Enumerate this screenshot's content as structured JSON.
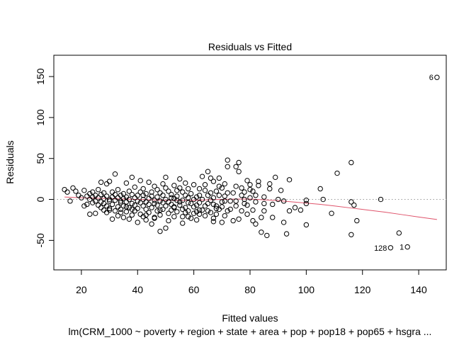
{
  "chart_data": {
    "type": "scatter",
    "title": "Residuals vs Fitted",
    "xlabel": "Fitted values",
    "ylabel": "Residuals",
    "subtitle": "lm(CRM_1000 ~ poverty + region + state + area + pop + pop18 + pop65 + hsgra ...",
    "xlim": [
      10.2,
      149.8
    ],
    "ylim": [
      -86,
      176
    ],
    "x_ticks": [
      20,
      40,
      60,
      80,
      100,
      120,
      140
    ],
    "y_ticks": [
      -50,
      0,
      50,
      100,
      150
    ],
    "grid": false,
    "legend": "none",
    "reference_line": {
      "y": 0,
      "style": "dotted",
      "color": "#999999"
    },
    "smoother": {
      "color": "#DF536B",
      "x": [
        14,
        20,
        25,
        30,
        35,
        40,
        45,
        50,
        55,
        60,
        65,
        70,
        75,
        80,
        85,
        90,
        95,
        100,
        105,
        110,
        116,
        122,
        128,
        134,
        140,
        146.5
      ],
      "y": [
        3,
        2,
        1.5,
        1,
        0.5,
        0,
        -0.5,
        -1,
        -1.2,
        -1,
        -0.5,
        0,
        0.5,
        0.5,
        -0.5,
        -1.5,
        -3,
        -4.5,
        -6,
        -8,
        -10.5,
        -13,
        -15.5,
        -18.5,
        -21.5,
        -24.5
      ]
    },
    "labeled_points": [
      {
        "label": "6",
        "x": 146.5,
        "y": 149
      },
      {
        "label": "128",
        "x": 130,
        "y": -59
      },
      {
        "label": "1",
        "x": 136,
        "y": -58
      }
    ],
    "points": [
      [
        146.5,
        149
      ],
      [
        130,
        -59
      ],
      [
        136,
        -58
      ],
      [
        133,
        -41
      ],
      [
        126.5,
        0
      ],
      [
        116,
        45
      ],
      [
        111,
        32
      ],
      [
        116,
        -43
      ],
      [
        118,
        -26
      ],
      [
        117,
        -7
      ],
      [
        116,
        -3
      ],
      [
        109,
        -17
      ],
      [
        106,
        0
      ],
      [
        105,
        13
      ],
      [
        100,
        -31
      ],
      [
        100,
        -5
      ],
      [
        100,
        -1
      ],
      [
        98,
        -13
      ],
      [
        96,
        -10
      ],
      [
        94,
        -14
      ],
      [
        94,
        24
      ],
      [
        93,
        -42
      ],
      [
        92,
        -28
      ],
      [
        92,
        -2
      ],
      [
        91,
        11
      ],
      [
        90,
        0
      ],
      [
        89,
        27
      ],
      [
        88,
        -6
      ],
      [
        88,
        -22
      ],
      [
        87,
        13
      ],
      [
        87,
        19
      ],
      [
        86,
        -44
      ],
      [
        85,
        -14
      ],
      [
        85,
        -5
      ],
      [
        85,
        3
      ],
      [
        84,
        -40
      ],
      [
        84,
        -22
      ],
      [
        83,
        17
      ],
      [
        83,
        22
      ],
      [
        82,
        -30
      ],
      [
        82,
        -3
      ],
      [
        82,
        5
      ],
      [
        81,
        -13
      ],
      [
        81,
        10
      ],
      [
        81,
        -26
      ],
      [
        80,
        2
      ],
      [
        80,
        12
      ],
      [
        80,
        18
      ],
      [
        79,
        -7
      ],
      [
        79,
        23
      ],
      [
        79,
        -18
      ],
      [
        78,
        0
      ],
      [
        78,
        9
      ],
      [
        78,
        -5
      ],
      [
        77,
        5
      ],
      [
        77,
        -14
      ],
      [
        77,
        14
      ],
      [
        76,
        34
      ],
      [
        76,
        -24
      ],
      [
        76,
        45
      ],
      [
        75,
        40
      ],
      [
        75,
        -8
      ],
      [
        75,
        -2
      ],
      [
        75,
        16
      ],
      [
        74,
        8
      ],
      [
        74,
        -26
      ],
      [
        73,
        -2
      ],
      [
        73,
        -12
      ],
      [
        72,
        48
      ],
      [
        72,
        8
      ],
      [
        72,
        40
      ],
      [
        72,
        -14
      ],
      [
        71,
        -20
      ],
      [
        71,
        -2
      ],
      [
        71,
        19
      ],
      [
        71,
        4
      ],
      [
        70,
        -3
      ],
      [
        70,
        -28
      ],
      [
        70,
        14
      ],
      [
        70,
        -9
      ],
      [
        69,
        5
      ],
      [
        69,
        -12
      ],
      [
        69,
        16
      ],
      [
        69,
        26
      ],
      [
        68,
        -18
      ],
      [
        68,
        -8
      ],
      [
        68,
        10
      ],
      [
        67,
        -23
      ],
      [
        67,
        -6
      ],
      [
        67,
        -27
      ],
      [
        67,
        22
      ],
      [
        67,
        2
      ],
      [
        66,
        -16
      ],
      [
        66,
        -1
      ],
      [
        66,
        8
      ],
      [
        66,
        26
      ],
      [
        65,
        -14
      ],
      [
        65,
        34
      ],
      [
        65,
        5
      ],
      [
        65,
        -5
      ],
      [
        64,
        -8
      ],
      [
        64,
        11
      ],
      [
        64,
        18
      ],
      [
        63,
        -13
      ],
      [
        63,
        0
      ],
      [
        63,
        28
      ],
      [
        62,
        -18
      ],
      [
        62,
        -4
      ],
      [
        62,
        5
      ],
      [
        62,
        13
      ],
      [
        61,
        -15
      ],
      [
        61,
        -7
      ],
      [
        61,
        3
      ],
      [
        61,
        -25
      ],
      [
        60,
        -9
      ],
      [
        60,
        0
      ],
      [
        60,
        18
      ],
      [
        60,
        -17
      ],
      [
        59,
        -5
      ],
      [
        59,
        7
      ],
      [
        59,
        -23
      ],
      [
        58,
        -14
      ],
      [
        58,
        2
      ],
      [
        58,
        13
      ],
      [
        58,
        -4
      ],
      [
        57,
        -10
      ],
      [
        57,
        5
      ],
      [
        57,
        20
      ],
      [
        56,
        -1
      ],
      [
        56,
        -12
      ],
      [
        56,
        9
      ],
      [
        56,
        -29
      ],
      [
        55,
        -3
      ],
      [
        55,
        14
      ],
      [
        55,
        -7
      ],
      [
        55,
        25
      ],
      [
        54,
        -15
      ],
      [
        54,
        4
      ],
      [
        54,
        -1
      ],
      [
        54,
        11
      ],
      [
        53,
        -9
      ],
      [
        53,
        1
      ],
      [
        53,
        17
      ],
      [
        53,
        -21
      ],
      [
        52,
        -6
      ],
      [
        52,
        6
      ],
      [
        52,
        -13
      ],
      [
        52,
        2
      ],
      [
        51,
        -3
      ],
      [
        51,
        10
      ],
      [
        51,
        -17
      ],
      [
        51,
        -26
      ],
      [
        50,
        0
      ],
      [
        50,
        -8
      ],
      [
        50,
        14
      ],
      [
        50,
        27
      ],
      [
        50,
        -35
      ],
      [
        49,
        -4
      ],
      [
        49,
        5
      ],
      [
        49,
        -12
      ],
      [
        49,
        19
      ],
      [
        48,
        -19
      ],
      [
        48,
        -2
      ],
      [
        48,
        8
      ],
      [
        48,
        -39
      ],
      [
        47,
        -7
      ],
      [
        47,
        3
      ],
      [
        47,
        -14
      ],
      [
        47,
        12
      ],
      [
        46,
        -1
      ],
      [
        46,
        -22
      ],
      [
        46,
        16
      ],
      [
        46,
        -5
      ],
      [
        45,
        4
      ],
      [
        45,
        -10
      ],
      [
        45,
        -30
      ],
      [
        45,
        9
      ],
      [
        44,
        -6
      ],
      [
        44,
        1
      ],
      [
        44,
        -16
      ],
      [
        44,
        21
      ],
      [
        43,
        -3
      ],
      [
        43,
        7
      ],
      [
        43,
        -12
      ],
      [
        43,
        -25
      ],
      [
        42,
        0
      ],
      [
        42,
        -8
      ],
      [
        42,
        13
      ],
      [
        42,
        5
      ],
      [
        41,
        -4
      ],
      [
        41,
        9
      ],
      [
        41,
        -18
      ],
      [
        41,
        23
      ],
      [
        40,
        -2
      ],
      [
        40,
        5
      ],
      [
        40,
        -11
      ],
      [
        40,
        -28
      ],
      [
        39,
        2
      ],
      [
        39,
        -7
      ],
      [
        39,
        15
      ],
      [
        39,
        -14
      ],
      [
        38,
        -5
      ],
      [
        38,
        6
      ],
      [
        38,
        -19
      ],
      [
        38,
        27
      ],
      [
        37,
        0
      ],
      [
        37,
        -10
      ],
      [
        37,
        10
      ],
      [
        37,
        -24
      ],
      [
        36,
        -3
      ],
      [
        36,
        3
      ],
      [
        36,
        -15
      ],
      [
        36,
        20
      ],
      [
        35,
        1
      ],
      [
        35,
        -8
      ],
      [
        35,
        -22
      ],
      [
        35,
        7
      ],
      [
        34,
        -4
      ],
      [
        34,
        5
      ],
      [
        34,
        -12
      ],
      [
        34,
        -2
      ],
      [
        33,
        2
      ],
      [
        33,
        -9
      ],
      [
        33,
        12
      ],
      [
        33,
        -20
      ],
      [
        32,
        -1
      ],
      [
        32,
        6
      ],
      [
        32,
        31
      ],
      [
        32,
        -14
      ],
      [
        31,
        3
      ],
      [
        31,
        -6
      ],
      [
        31,
        9
      ],
      [
        31,
        -24
      ],
      [
        30,
        -2
      ],
      [
        30,
        0
      ],
      [
        30,
        22
      ],
      [
        30,
        -11
      ],
      [
        29,
        4
      ],
      [
        29,
        -8
      ],
      [
        29,
        19
      ],
      [
        29,
        -16
      ],
      [
        28,
        1
      ],
      [
        28,
        -5
      ],
      [
        28,
        8
      ],
      [
        28,
        -13
      ],
      [
        27,
        -3
      ],
      [
        27,
        6
      ],
      [
        27,
        21
      ],
      [
        27,
        -10
      ],
      [
        26,
        2
      ],
      [
        26,
        -7
      ],
      [
        26,
        12
      ],
      [
        25,
        -2
      ],
      [
        25,
        5
      ],
      [
        25,
        -17
      ],
      [
        24,
        3
      ],
      [
        24,
        -4
      ],
      [
        24,
        9
      ],
      [
        23,
        0
      ],
      [
        23,
        -18
      ],
      [
        23,
        7
      ],
      [
        22,
        -6
      ],
      [
        22,
        4
      ],
      [
        21,
        -8
      ],
      [
        21,
        11
      ],
      [
        20,
        2
      ],
      [
        19,
        5
      ],
      [
        18,
        10
      ],
      [
        17,
        14
      ],
      [
        16,
        -2
      ],
      [
        15,
        9
      ],
      [
        14,
        12
      ],
      [
        62,
        -13
      ],
      [
        57,
        -16
      ],
      [
        53,
        -10
      ],
      [
        48,
        -13
      ],
      [
        43,
        -19
      ],
      [
        38,
        -12
      ],
      [
        34,
        -16
      ],
      [
        30,
        -13
      ],
      [
        46,
        -23
      ],
      [
        56,
        -21
      ],
      [
        64,
        -20
      ],
      [
        68,
        -11
      ],
      [
        58,
        -21
      ],
      [
        42,
        -21
      ],
      [
        36,
        -9
      ]
    ]
  }
}
